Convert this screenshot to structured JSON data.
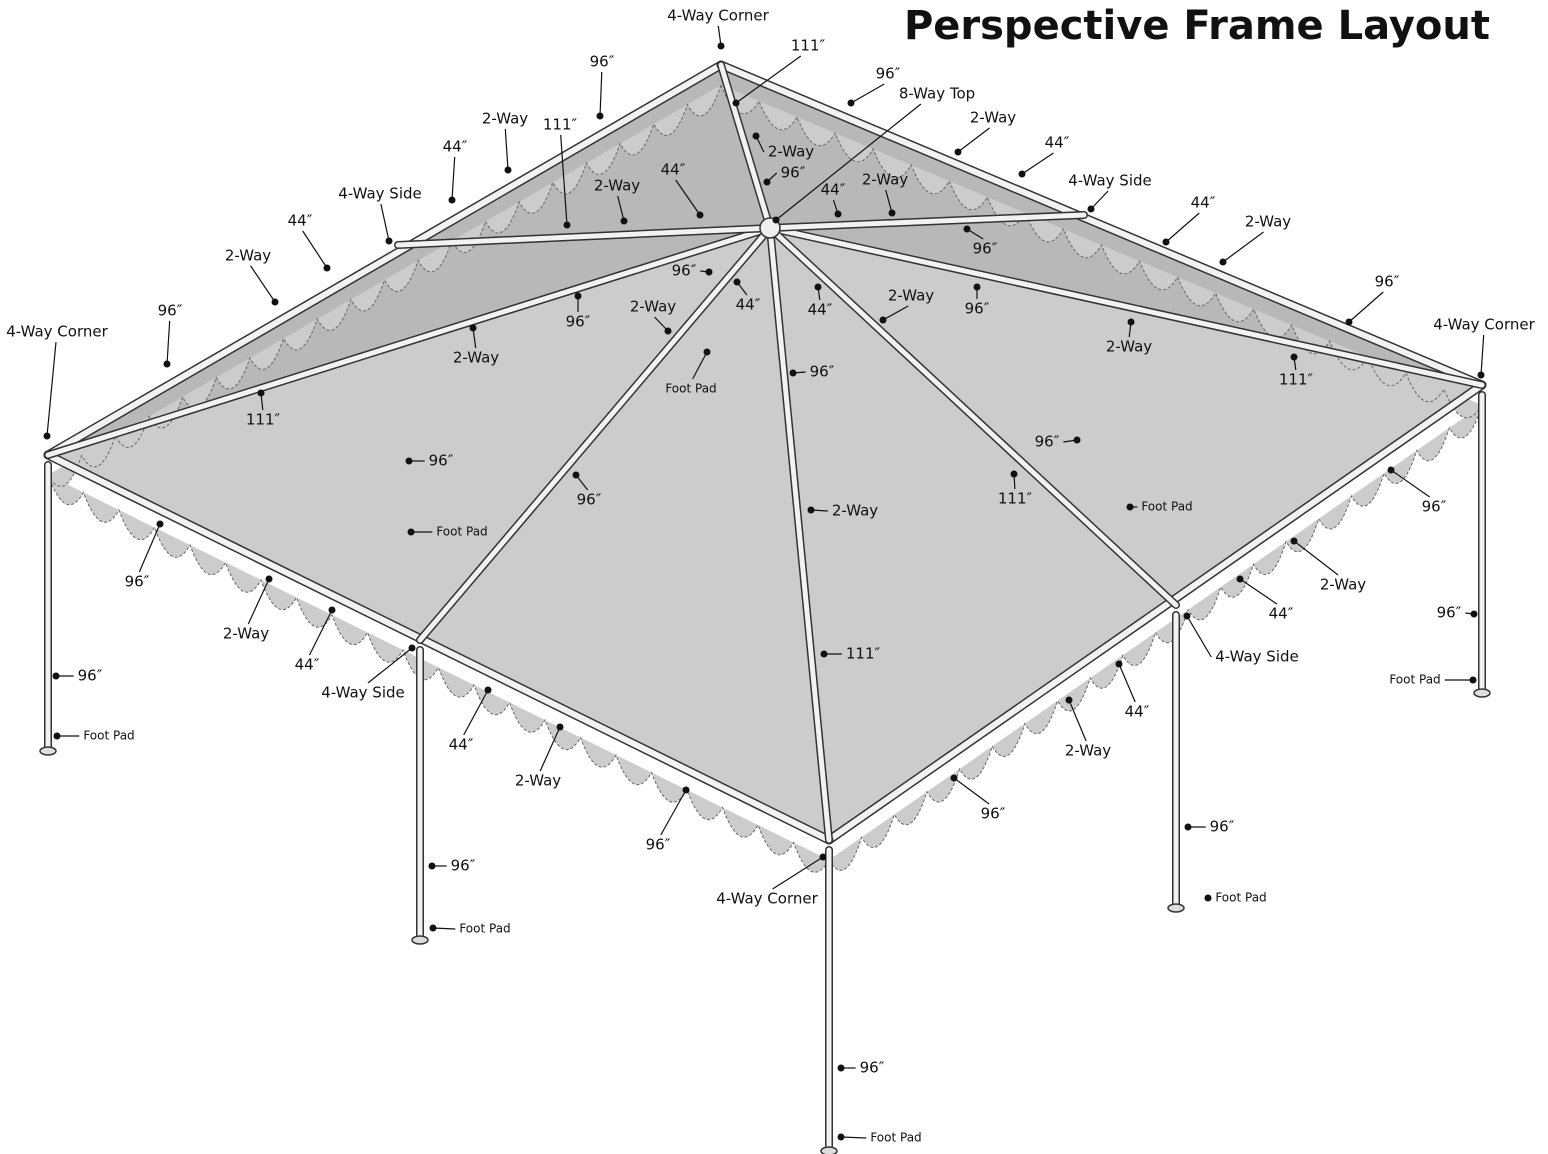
{
  "title": "Perspective Frame Layout",
  "labels": [
    "4-Way Corner",
    "111″",
    "96″",
    "96″",
    "8-Way Top",
    "2-Way",
    "111″",
    "2-Way",
    "44″",
    "2-Way",
    "44″",
    "96″",
    "44″",
    "2-Way",
    "2-Way",
    "44″",
    "4-Way Side",
    "4-Way Side",
    "44″",
    "44″",
    "96″",
    "2-Way",
    "2-Way",
    "96″",
    "44″",
    "44″",
    "2-Way",
    "96″",
    "96″",
    "96″",
    "2-Way",
    "96″",
    "4-Way Corner",
    "2-Way",
    "4-Way Corner",
    "2-Way",
    "Foot Pad",
    "96″",
    "111″",
    "111″",
    "96″",
    "96″",
    "111″",
    "96″",
    "Foot Pad",
    "Foot Pad",
    "2-Way",
    "96″",
    "96″",
    "2-Way",
    "2-Way",
    "44″",
    "44″",
    "4-Way Side",
    "111″",
    "96″",
    "96″",
    "4-Way Side",
    "Foot Pad",
    "44″",
    "Foot Pad",
    "44″",
    "2-Way",
    "2-Way",
    "96″",
    "96″",
    "4-Way Corner",
    "96″",
    "96″",
    "Foot Pad",
    "Foot Pad",
    "96″",
    "Foot Pad"
  ]
}
